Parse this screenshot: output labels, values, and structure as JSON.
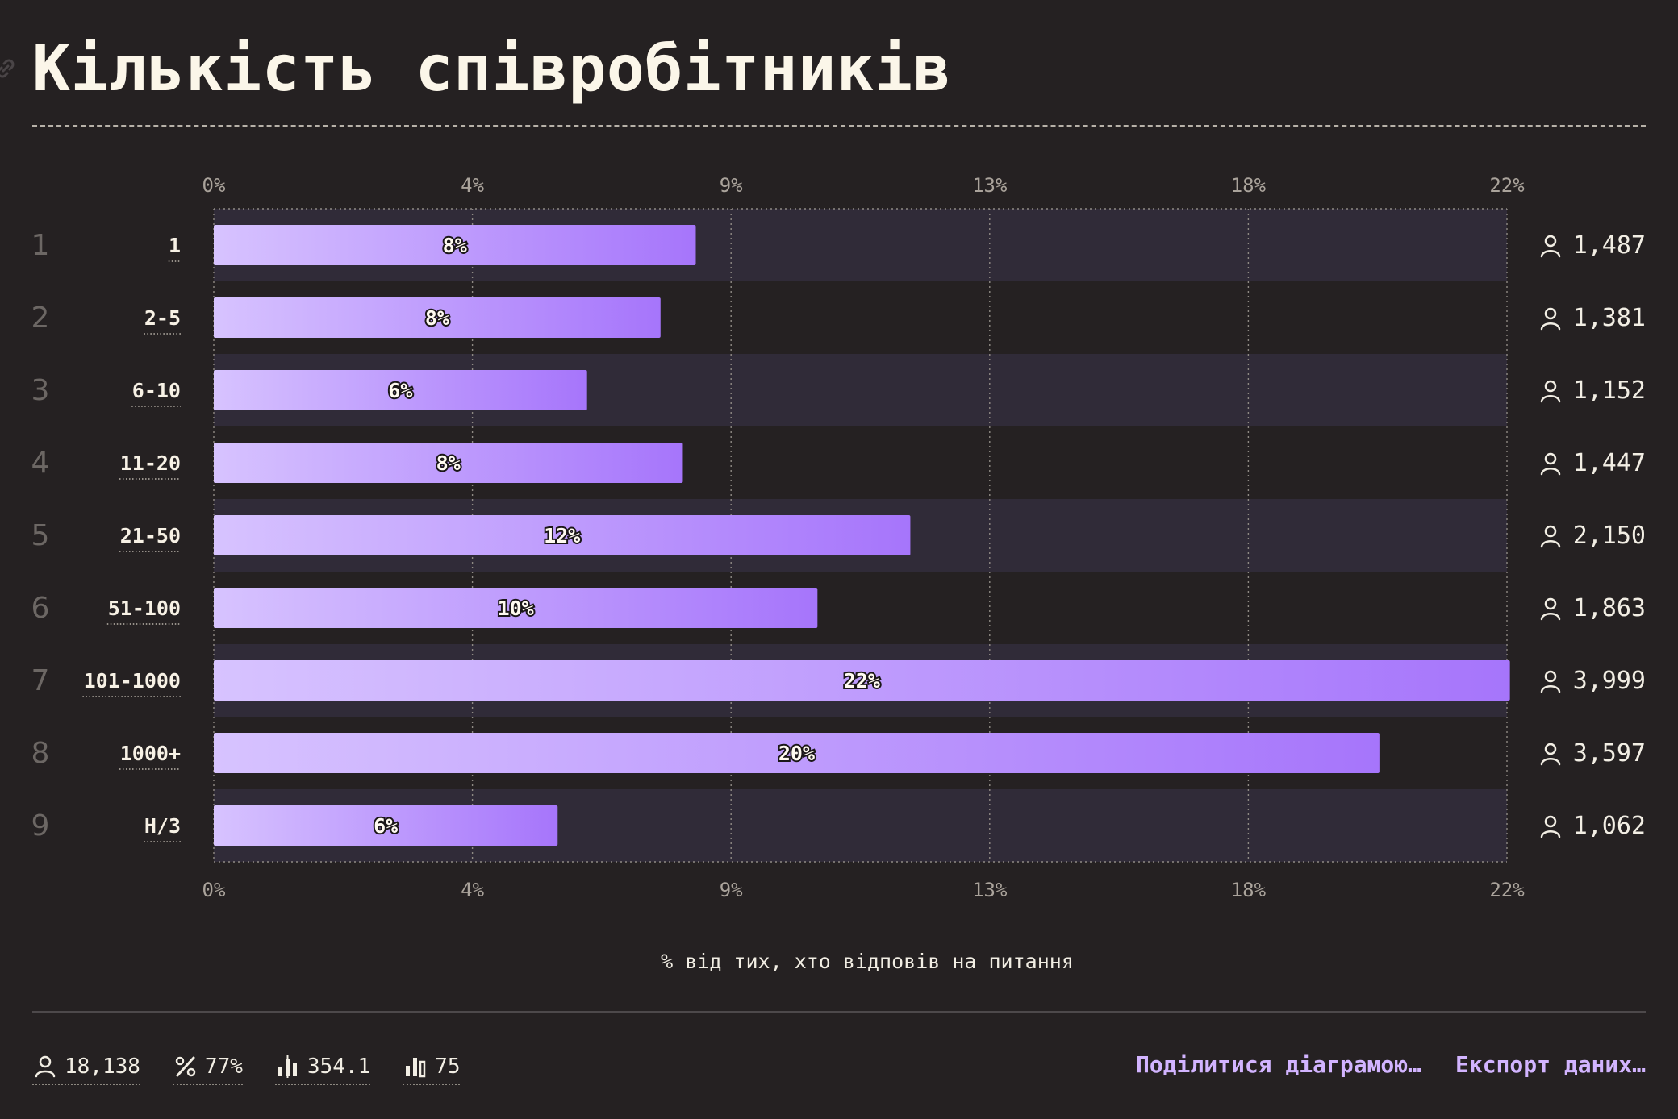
{
  "header": {
    "title": "Кількість співробітників"
  },
  "footer": {
    "stats": [
      {
        "icon": "person-icon",
        "value": "18,138"
      },
      {
        "icon": "percent-icon",
        "value": "77%"
      },
      {
        "icon": "chart-median-icon",
        "value": "354.1"
      },
      {
        "icon": "bar-chart-icon",
        "value": "75"
      }
    ],
    "actions": {
      "share": "Поділитися діаграмою…",
      "export": "Експорт даних…"
    }
  },
  "colors": {
    "background": "#252122",
    "row_band": "#302b38",
    "bar_start": "#d7c3ff",
    "bar_end": "#a675fb",
    "title": "#fbf6e9",
    "accent_link": "#d2b4ff",
    "axis_text": "#aaa39b"
  },
  "chart_data": {
    "type": "bar",
    "orientation": "horizontal",
    "xlabel": "% від тих, хто відповів на питання",
    "xlim": [
      0,
      22
    ],
    "ticks": [
      "0%",
      "4%",
      "9%",
      "13%",
      "18%",
      "22%"
    ],
    "grid": true,
    "categories": [
      "1",
      "2-5",
      "6-10",
      "11-20",
      "21-50",
      "51-100",
      "101-1000",
      "1000+",
      "Н/З"
    ],
    "ranks": [
      "1",
      "2",
      "3",
      "4",
      "5",
      "6",
      "7",
      "8",
      "9"
    ],
    "values": [
      8.2,
      7.6,
      6.35,
      7.98,
      11.85,
      10.27,
      22.05,
      19.83,
      5.85
    ],
    "value_labels": [
      "8%",
      "8%",
      "6%",
      "8%",
      "12%",
      "10%",
      "22%",
      "20%",
      "6%"
    ],
    "counts": [
      "1,487",
      "1,381",
      "1,152",
      "1,447",
      "2,150",
      "1,863",
      "3,999",
      "3,597",
      "1,062"
    ]
  }
}
